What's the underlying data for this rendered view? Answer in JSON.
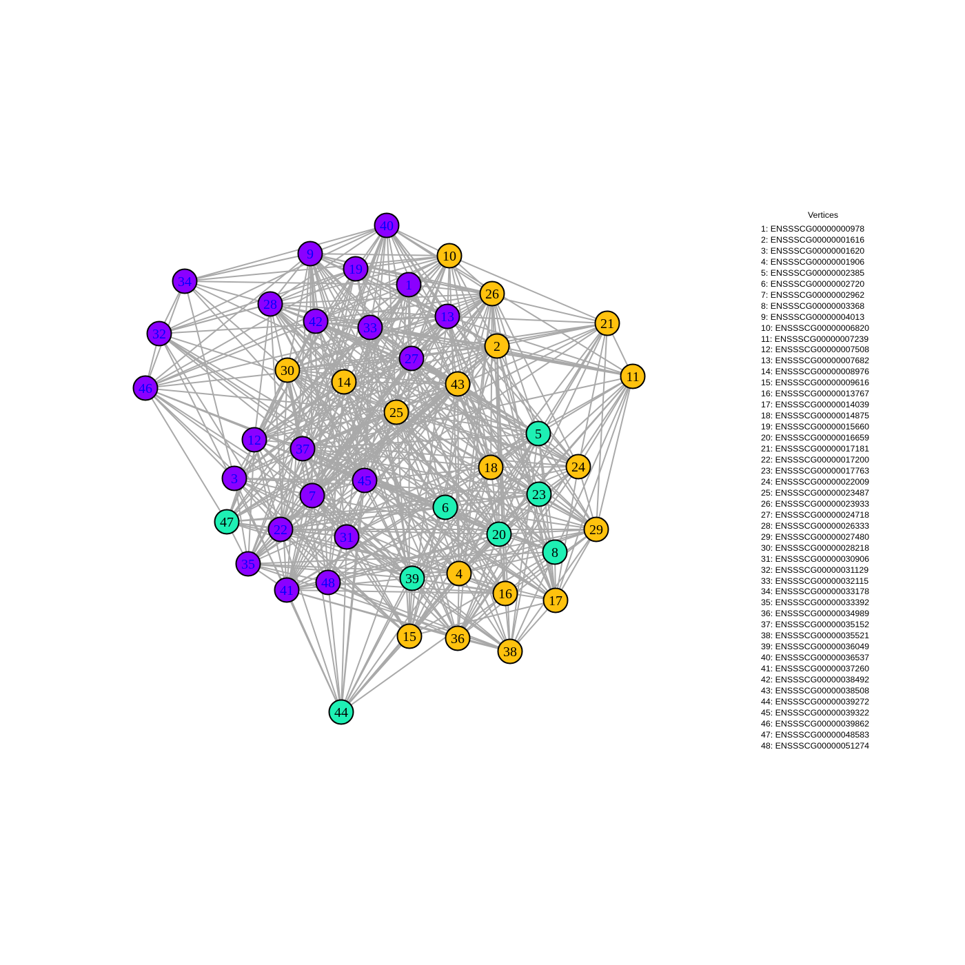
{
  "colors": {
    "module_purple": "#8b00ff",
    "module_gold": "#ffc20e",
    "module_teal": "#1ef0b4",
    "edge": "#a9a9a9",
    "node_border": "#000000"
  },
  "legend": {
    "title": "Vertices",
    "items": [
      "1: ENSSSCG00000000978",
      "2: ENSSSCG00000001616",
      "3: ENSSSCG00000001620",
      "4: ENSSSCG00000001906",
      "5: ENSSSCG00000002385",
      "6: ENSSSCG00000002720",
      "7: ENSSSCG00000002962",
      "8: ENSSSCG00000003368",
      "9: ENSSSCG00000004013",
      "10: ENSSSCG00000006820",
      "11: ENSSSCG00000007239",
      "12: ENSSSCG00000007508",
      "13: ENSSSCG00000007682",
      "14: ENSSSCG00000008976",
      "15: ENSSSCG00000009616",
      "16: ENSSSCG00000013767",
      "17: ENSSSCG00000014039",
      "18: ENSSSCG00000014875",
      "19: ENSSSCG00000015660",
      "20: ENSSSCG00000016659",
      "21: ENSSSCG00000017181",
      "22: ENSSSCG00000017200",
      "23: ENSSSCG00000017763",
      "24: ENSSSCG00000022009",
      "25: ENSSSCG00000023487",
      "26: ENSSSCG00000023933",
      "27: ENSSSCG00000024718",
      "28: ENSSSCG00000026333",
      "29: ENSSSCG00000027480",
      "30: ENSSSCG00000028218",
      "31: ENSSSCG00000030906",
      "32: ENSSSCG00000031129",
      "33: ENSSSCG00000032115",
      "34: ENSSSCG00000033178",
      "35: ENSSSCG00000033392",
      "36: ENSSSCG00000034989",
      "37: ENSSSCG00000035152",
      "38: ENSSSCG00000035521",
      "39: ENSSSCG00000036049",
      "40: ENSSSCG00000036537",
      "41: ENSSSCG00000037260",
      "42: ENSSSCG00000038492",
      "43: ENSSSCG00000038508",
      "44: ENSSSCG00000039272",
      "45: ENSSSCG00000039322",
      "46: ENSSSCG00000039862",
      "47: ENSSSCG00000048583",
      "48: ENSSSCG00000051274"
    ]
  },
  "graph": {
    "nodes": [
      {
        "id": "1",
        "module": "purple"
      },
      {
        "id": "2",
        "module": "gold"
      },
      {
        "id": "3",
        "module": "purple"
      },
      {
        "id": "4",
        "module": "gold"
      },
      {
        "id": "5",
        "module": "teal"
      },
      {
        "id": "6",
        "module": "teal"
      },
      {
        "id": "7",
        "module": "purple"
      },
      {
        "id": "8",
        "module": "teal"
      },
      {
        "id": "9",
        "module": "purple"
      },
      {
        "id": "10",
        "module": "gold"
      },
      {
        "id": "11",
        "module": "gold"
      },
      {
        "id": "12",
        "module": "purple"
      },
      {
        "id": "13",
        "module": "purple"
      },
      {
        "id": "14",
        "module": "gold"
      },
      {
        "id": "15",
        "module": "gold"
      },
      {
        "id": "16",
        "module": "gold"
      },
      {
        "id": "17",
        "module": "gold"
      },
      {
        "id": "18",
        "module": "gold"
      },
      {
        "id": "19",
        "module": "purple"
      },
      {
        "id": "20",
        "module": "teal"
      },
      {
        "id": "21",
        "module": "gold"
      },
      {
        "id": "22",
        "module": "purple"
      },
      {
        "id": "23",
        "module": "teal"
      },
      {
        "id": "24",
        "module": "gold"
      },
      {
        "id": "25",
        "module": "gold"
      },
      {
        "id": "26",
        "module": "gold"
      },
      {
        "id": "27",
        "module": "purple"
      },
      {
        "id": "28",
        "module": "purple"
      },
      {
        "id": "29",
        "module": "gold"
      },
      {
        "id": "30",
        "module": "gold"
      },
      {
        "id": "31",
        "module": "purple"
      },
      {
        "id": "32",
        "module": "purple"
      },
      {
        "id": "33",
        "module": "purple"
      },
      {
        "id": "34",
        "module": "purple"
      },
      {
        "id": "35",
        "module": "purple"
      },
      {
        "id": "36",
        "module": "gold"
      },
      {
        "id": "37",
        "module": "purple"
      },
      {
        "id": "38",
        "module": "gold"
      },
      {
        "id": "39",
        "module": "teal"
      },
      {
        "id": "40",
        "module": "purple"
      },
      {
        "id": "41",
        "module": "purple"
      },
      {
        "id": "42",
        "module": "purple"
      },
      {
        "id": "43",
        "module": "gold"
      },
      {
        "id": "44",
        "module": "teal"
      },
      {
        "id": "45",
        "module": "purple"
      },
      {
        "id": "46",
        "module": "purple"
      },
      {
        "id": "47",
        "module": "teal"
      },
      {
        "id": "48",
        "module": "purple"
      }
    ]
  }
}
